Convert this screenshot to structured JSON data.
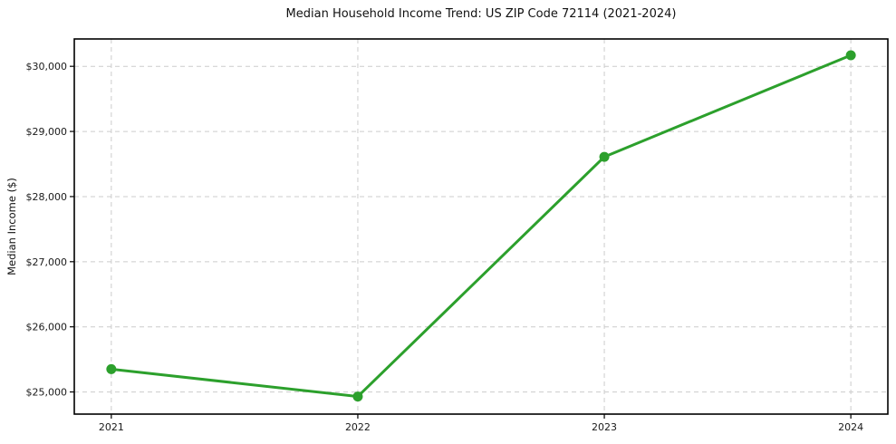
{
  "chart_data": {
    "type": "line",
    "title": "Median Household Income Trend: US ZIP Code 72114 (2021-2024)",
    "categories": [
      "2021",
      "2022",
      "2023",
      "2024"
    ],
    "values": [
      25350,
      24930,
      28610,
      30170
    ],
    "xlabel": "",
    "ylabel": "Median Income ($)",
    "ylim": [
      24660,
      30420
    ],
    "yticks": [
      25000,
      26000,
      27000,
      28000,
      29000,
      30000
    ],
    "ytick_labels": [
      "$25,000",
      "$26,000",
      "$27,000",
      "$28,000",
      "$29,000",
      "$30,000"
    ],
    "xtick_labels": [
      "2021",
      "2022",
      "2023",
      "2024"
    ],
    "grid": "dashed-both-axes",
    "legend": "none",
    "colors": {
      "line": "#2ca02c",
      "marker": "#2ca02c",
      "grid": "#cccccc",
      "spine": "#000000",
      "tick_text": "#1a1a1a",
      "background": "#ffffff"
    }
  }
}
